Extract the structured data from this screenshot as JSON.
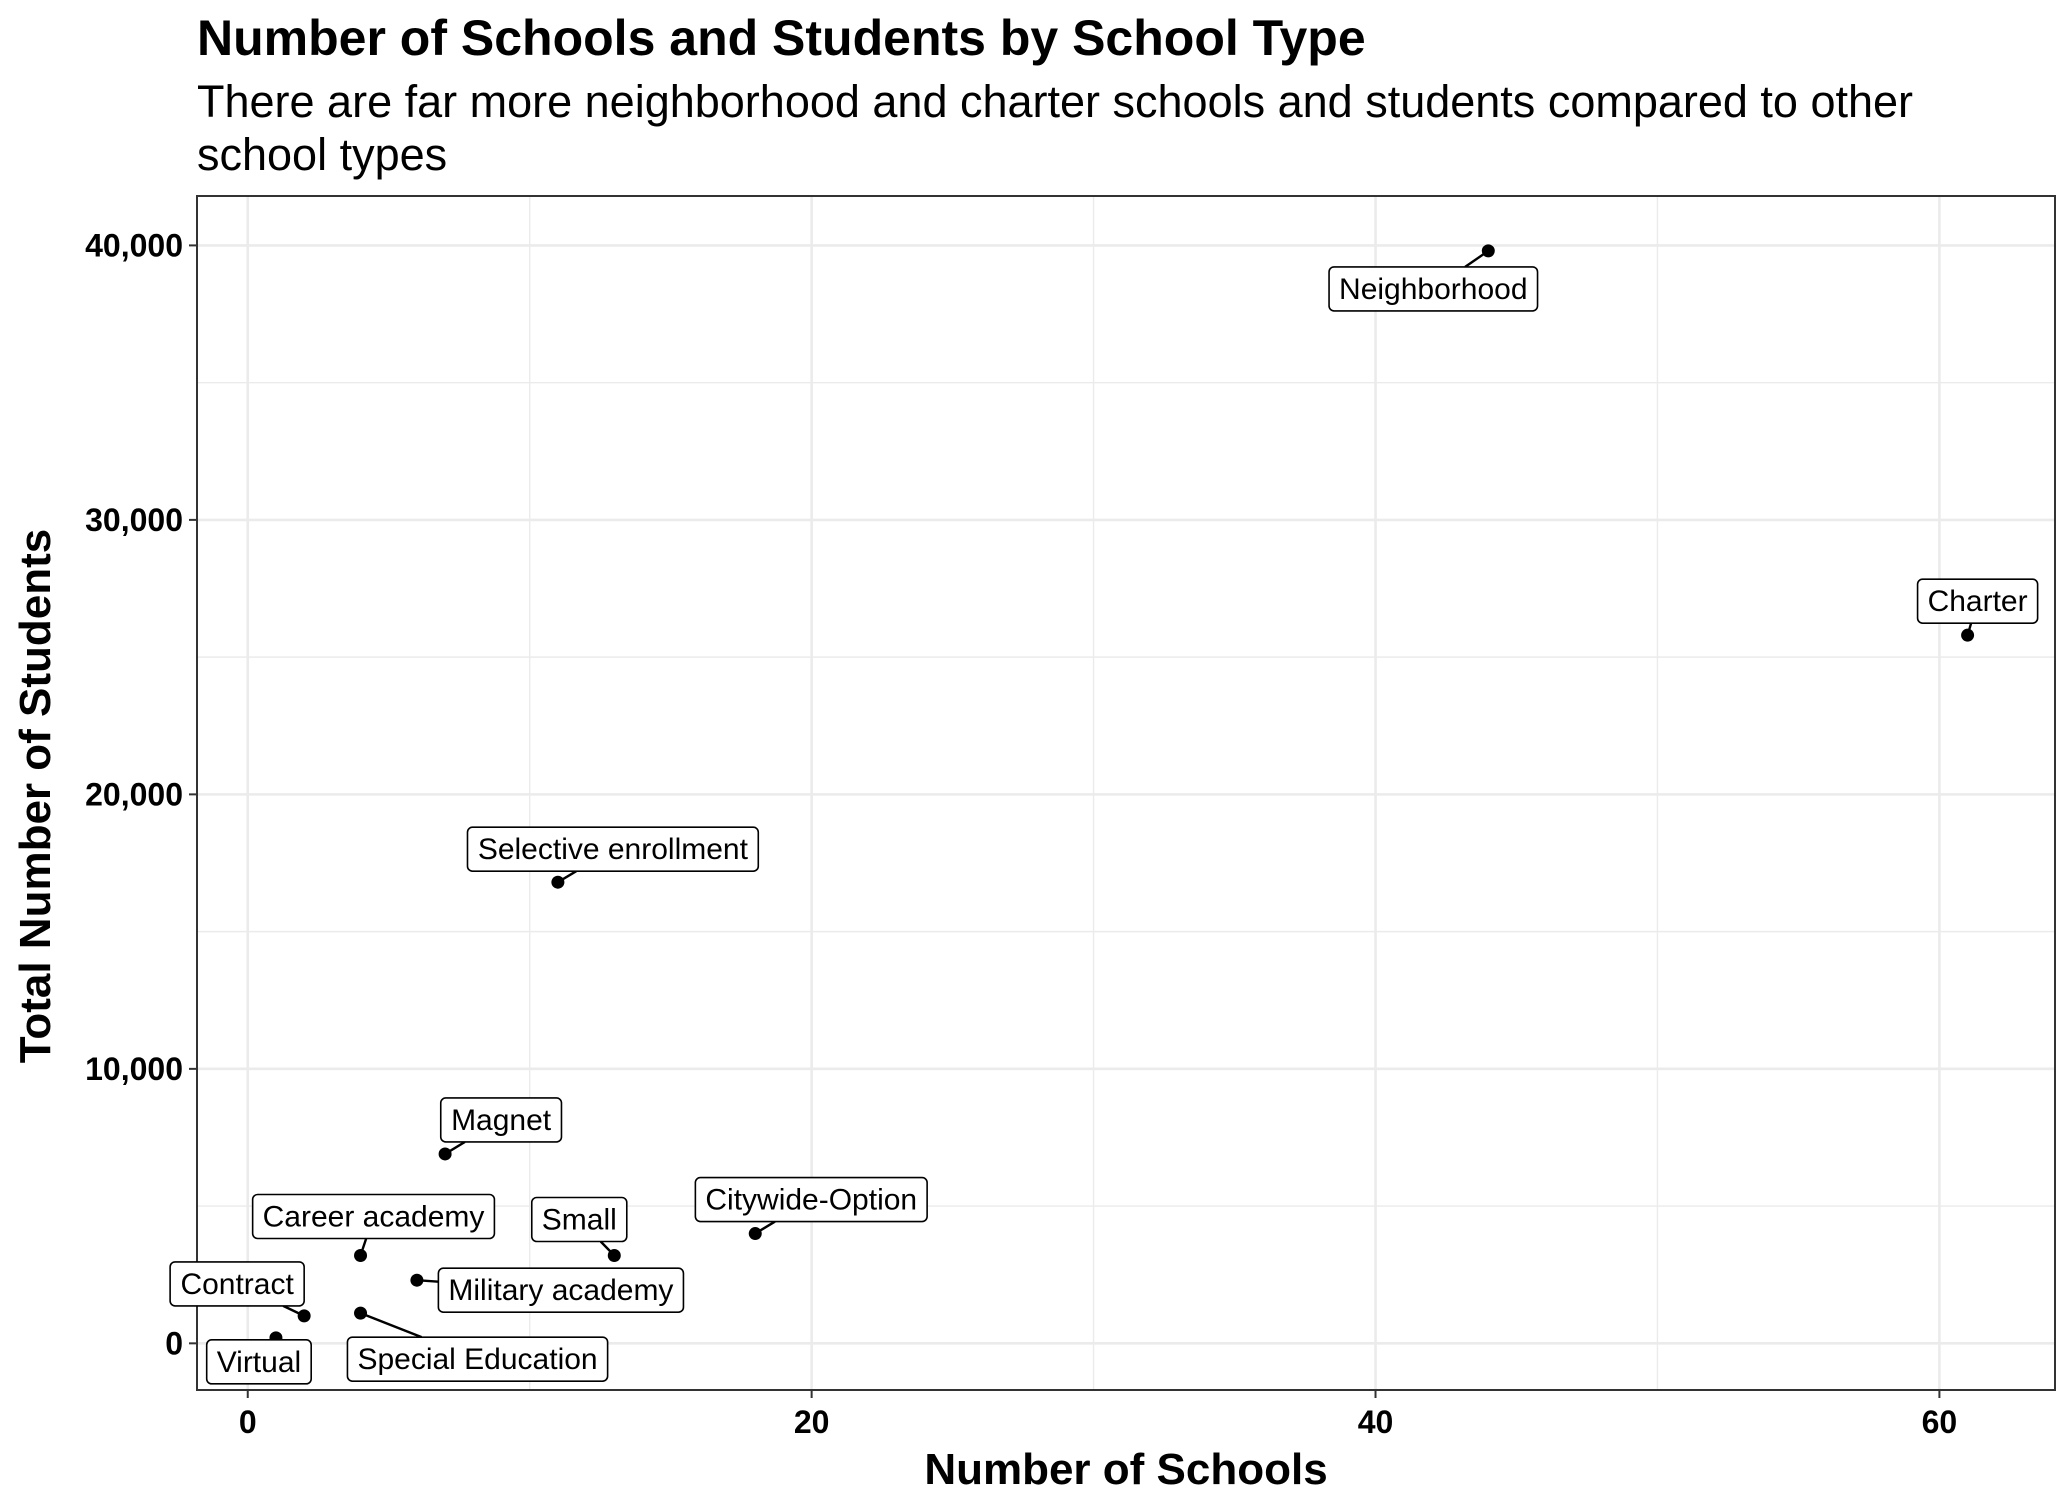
{
  "chart_data": {
    "type": "scatter",
    "title": "Number of Schools and Students by School Type",
    "subtitle_lines": [
      "There are far more neighborhood and charter schools and students compared to other",
      "school types"
    ],
    "xlabel": "Number of Schools",
    "ylabel": "Total Number of Students",
    "xlim": [
      -1.8,
      64.1
    ],
    "ylim": [
      -1700,
      41800
    ],
    "x_ticks": [
      0,
      20,
      40,
      60
    ],
    "x_tick_labels": [
      "0",
      "20",
      "40",
      "60"
    ],
    "y_ticks": [
      0,
      10000,
      20000,
      30000,
      40000
    ],
    "y_tick_labels": [
      "0",
      "10,000",
      "20,000",
      "30,000",
      "40,000"
    ],
    "grid": true,
    "legend": "none",
    "colors": {
      "point": "#000000",
      "grid": "#ebebeb",
      "panel_border": "#333333",
      "label_border": "#000000",
      "label_fill": "#ffffff"
    },
    "points": [
      {
        "label": "Neighborhood",
        "x": 44,
        "y": 39800
      },
      {
        "label": "Charter",
        "x": 61,
        "y": 25800
      },
      {
        "label": "Selective enrollment",
        "x": 11,
        "y": 16800
      },
      {
        "label": "Magnet",
        "x": 7,
        "y": 6900
      },
      {
        "label": "Citywide-Option",
        "x": 18,
        "y": 4000
      },
      {
        "label": "Small",
        "x": 13,
        "y": 3200
      },
      {
        "label": "Career academy",
        "x": 4,
        "y": 3200
      },
      {
        "label": "Military academy",
        "x": 6,
        "y": 2300
      },
      {
        "label": "Contract",
        "x": 2,
        "y": 1000
      },
      {
        "label": "Special Education",
        "x": 4,
        "y": 1100
      },
      {
        "label": "Virtual",
        "x": 1,
        "y": 200
      }
    ]
  }
}
